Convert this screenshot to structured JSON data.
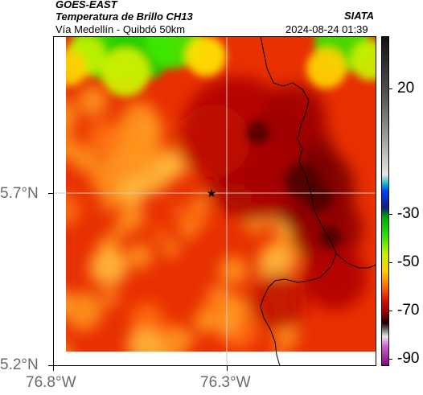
{
  "header": {
    "source": "GOES-EAST",
    "product": "Temperatura de Brillo CH13",
    "region": "Vía Medellín - Quibdó 50km",
    "org": "SIATA",
    "datetime": "2024-08-24 01:39"
  },
  "axes": {
    "y_ticks": [
      "5.7°N",
      "5.2°N"
    ],
    "x_ticks": [
      "76.8°W",
      "76.3°W"
    ],
    "colorbar_ticks": [
      "20",
      "-30",
      "-50",
      "-70",
      "-90"
    ]
  },
  "colors": {
    "cold_core": "#6a0000",
    "warm_edge": "#ffd040",
    "edge_green": "#22dd00",
    "grid": "#c8c8c8",
    "border": "#000000"
  },
  "markers": {
    "station_icon": "star-icon"
  }
}
